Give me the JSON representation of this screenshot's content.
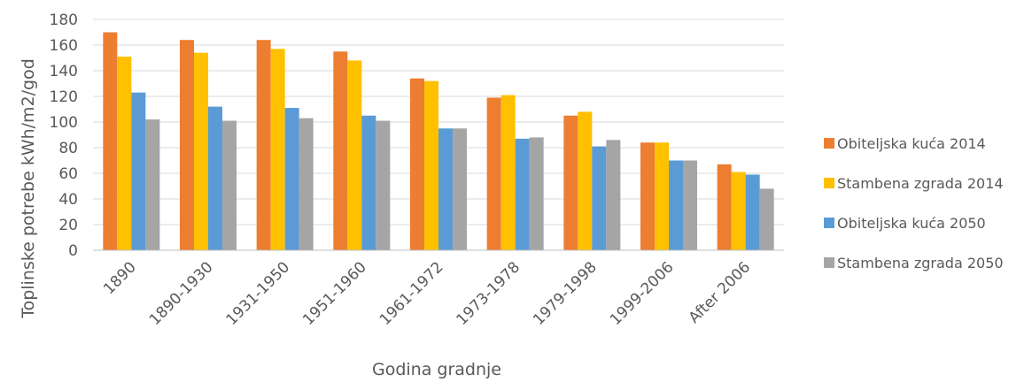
{
  "chart_data": {
    "type": "bar",
    "title": "",
    "xlabel": "Godina gradnje",
    "ylabel": "Toplinske potrebe kWh/m2/god",
    "ylim": [
      0,
      180
    ],
    "yticks": [
      0,
      20,
      40,
      60,
      80,
      100,
      120,
      140,
      160,
      180
    ],
    "grid": true,
    "legend": "right",
    "categories": [
      "1890",
      "1890-1930",
      "1931-1950",
      "1951-1960",
      "1961-1972",
      "1973-1978",
      "1979-1998",
      "1999-2006",
      "After 2006"
    ],
    "series": [
      {
        "name": "Obiteljska kuća 2014",
        "color": "#ED7D31",
        "values": [
          170,
          164,
          164,
          155,
          134,
          119,
          105,
          84,
          67
        ]
      },
      {
        "name": "Stambena zgrada 2014",
        "color": "#FFC000",
        "values": [
          151,
          154,
          157,
          148,
          132,
          121,
          108,
          84,
          61
        ]
      },
      {
        "name": "Obiteljska kuća 2050",
        "color": "#5B9BD5",
        "values": [
          123,
          112,
          111,
          105,
          95,
          87,
          81,
          70,
          59
        ]
      },
      {
        "name": "Stambena zgrada 2050",
        "color": "#A5A5A5",
        "values": [
          102,
          101,
          103,
          101,
          95,
          88,
          86,
          70,
          48
        ]
      }
    ]
  }
}
